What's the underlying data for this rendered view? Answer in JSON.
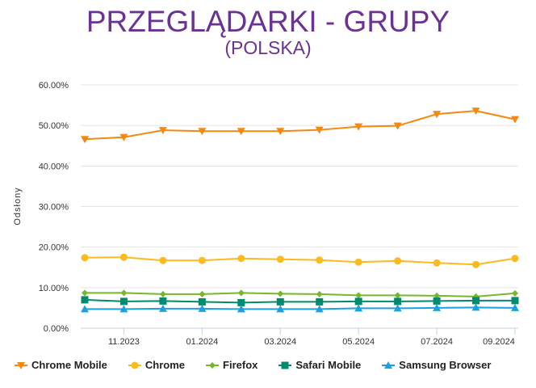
{
  "title": "PRZEGLĄDARKI - GRUPY",
  "subtitle": "(POLSKA)",
  "chart_data": {
    "type": "line",
    "title": "PRZEGLĄDARKI - GRUPY",
    "subtitle": "(POLSKA)",
    "xlabel": "",
    "ylabel": "Odsłony",
    "ylim": [
      0,
      60
    ],
    "yticks": [
      "0.00%",
      "10.00%",
      "20.00%",
      "30.00%",
      "40.00%",
      "50.00%",
      "60.00%"
    ],
    "x": [
      "10.2023",
      "11.2023",
      "12.2023",
      "01.2024",
      "02.2024",
      "03.2024",
      "04.2024",
      "05.2024",
      "06.2024",
      "07.2024",
      "08.2024",
      "09.2024"
    ],
    "xtick_labels": [
      "11.2023",
      "01.2024",
      "03.2024",
      "05.2024",
      "07.2024",
      "09.2024"
    ],
    "grid": true,
    "legend_position": "bottom",
    "series": [
      {
        "name": "Chrome Mobile",
        "color": "#f7880f",
        "marker": "triangle-down",
        "values": [
          46.6,
          47.1,
          48.8,
          48.6,
          48.6,
          48.6,
          48.9,
          49.7,
          49.9,
          52.8,
          53.6,
          51.5
        ]
      },
      {
        "name": "Chrome",
        "color": "#fbbb1d",
        "marker": "circle",
        "values": [
          17.4,
          17.5,
          16.7,
          16.7,
          17.2,
          17.0,
          16.8,
          16.3,
          16.6,
          16.1,
          15.7,
          17.2
        ]
      },
      {
        "name": "Firefox",
        "color": "#76b82a",
        "marker": "diamond",
        "values": [
          8.7,
          8.7,
          8.4,
          8.4,
          8.7,
          8.5,
          8.4,
          8.1,
          8.1,
          8.0,
          7.8,
          8.6
        ]
      },
      {
        "name": "Safari Mobile",
        "color": "#008a6e",
        "marker": "square",
        "values": [
          7.0,
          6.6,
          6.7,
          6.5,
          6.3,
          6.5,
          6.5,
          6.6,
          6.6,
          6.7,
          6.8,
          6.8
        ]
      },
      {
        "name": "Samsung Browser",
        "color": "#1ba1e2",
        "marker": "triangle-up",
        "values": [
          4.7,
          4.7,
          4.8,
          4.8,
          4.7,
          4.7,
          4.7,
          4.9,
          4.9,
          5.0,
          5.1,
          5.0
        ]
      }
    ]
  }
}
